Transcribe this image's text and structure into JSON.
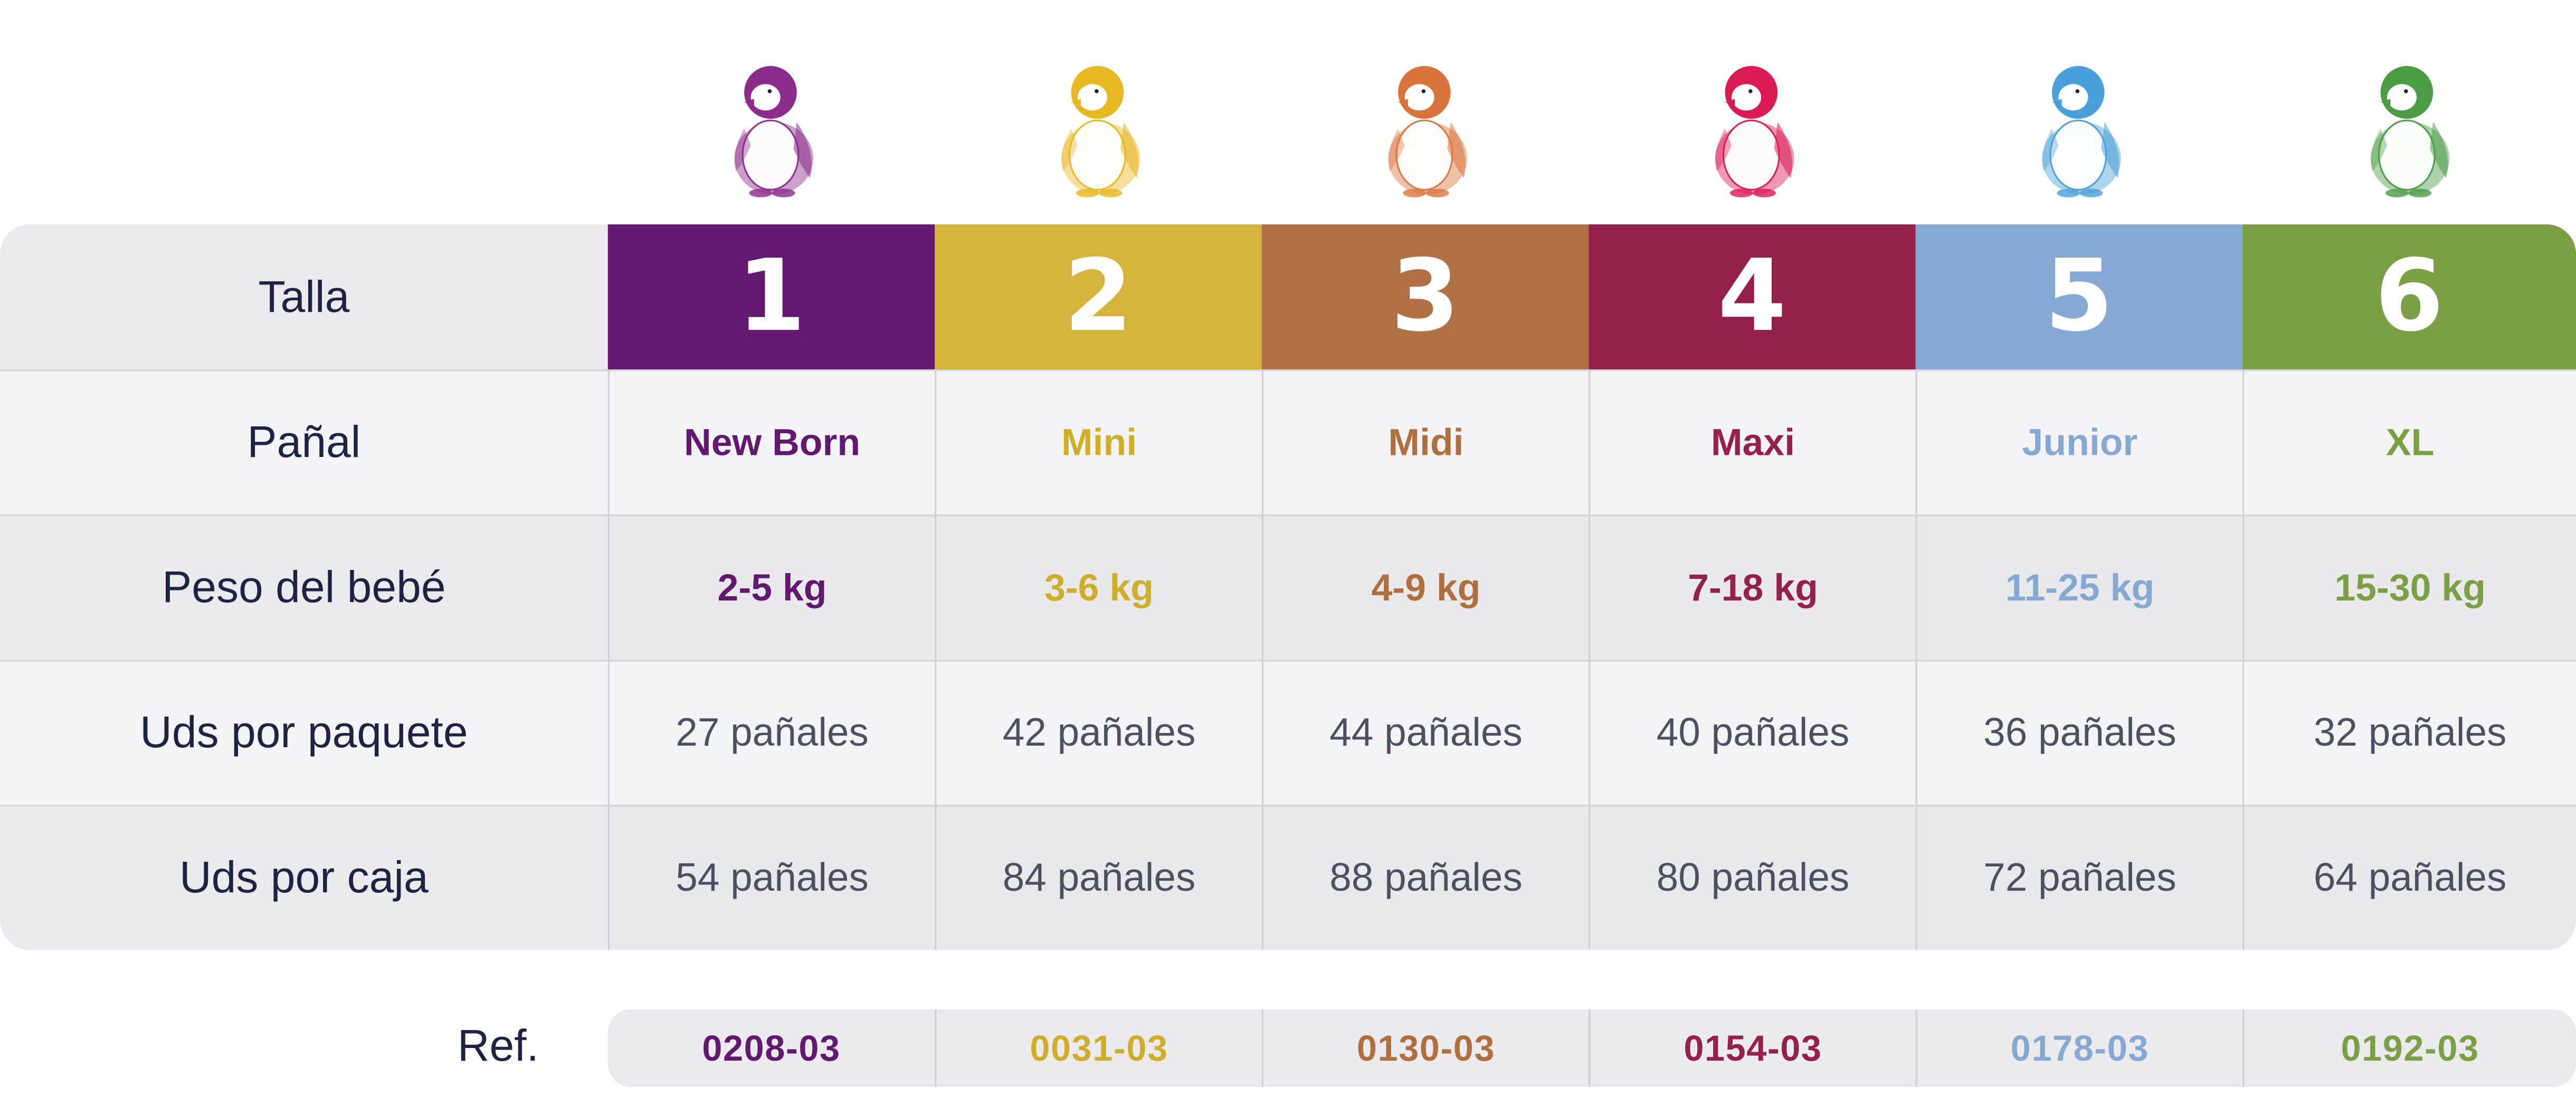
{
  "row_labels": {
    "talla": "Talla",
    "panal": "Pañal",
    "peso": "Peso del bebé",
    "uds_paquete": "Uds por paquete",
    "uds_caja": "Uds por caja"
  },
  "ref_label": "Ref.",
  "sizes": [
    {
      "number": "1",
      "name": "New Born",
      "weight": "2-5 kg",
      "per_pack": "27 pañales",
      "per_box": "54 pañales",
      "ref": "0208-03",
      "color": "#631870",
      "text_color": "#631870",
      "penguin_color": "#8b2b8c"
    },
    {
      "number": "2",
      "name": "Mini",
      "weight": "3-6 kg",
      "per_pack": "42 pañales",
      "per_box": "84 pañales",
      "ref": "0031-03",
      "color": "#d4b43a",
      "text_color": "#cfae2c",
      "penguin_color": "#e7b721"
    },
    {
      "number": "3",
      "name": "Midi",
      "weight": "4-9 kg",
      "per_pack": "44 pañales",
      "per_box": "88 pañales",
      "ref": "0130-03",
      "color": "#b07244",
      "text_color": "#b06f3e",
      "penguin_color": "#d9753c"
    },
    {
      "number": "4",
      "name": "Maxi",
      "weight": "7-18 kg",
      "per_pack": "40 pañales",
      "per_box": "80 pañales",
      "ref": "0154-03",
      "color": "#94204c",
      "text_color": "#94204c",
      "penguin_color": "#d91a55"
    },
    {
      "number": "5",
      "name": "Junior",
      "weight": "11-25 kg",
      "per_pack": "36 pañales",
      "per_box": "72 pañales",
      "ref": "0178-03",
      "color": "#86a9d3",
      "text_color": "#86a9d3",
      "penguin_color": "#4aa0d8"
    },
    {
      "number": "6",
      "name": "XL",
      "weight": "15-30 kg",
      "per_pack": "32 pañales",
      "per_box": "64 pañales",
      "ref": "0192-03",
      "color": "#7a9f44",
      "text_color": "#7a9f44",
      "penguin_color": "#4c9b45"
    }
  ],
  "icons": {
    "mascot": "penguin-icon"
  }
}
